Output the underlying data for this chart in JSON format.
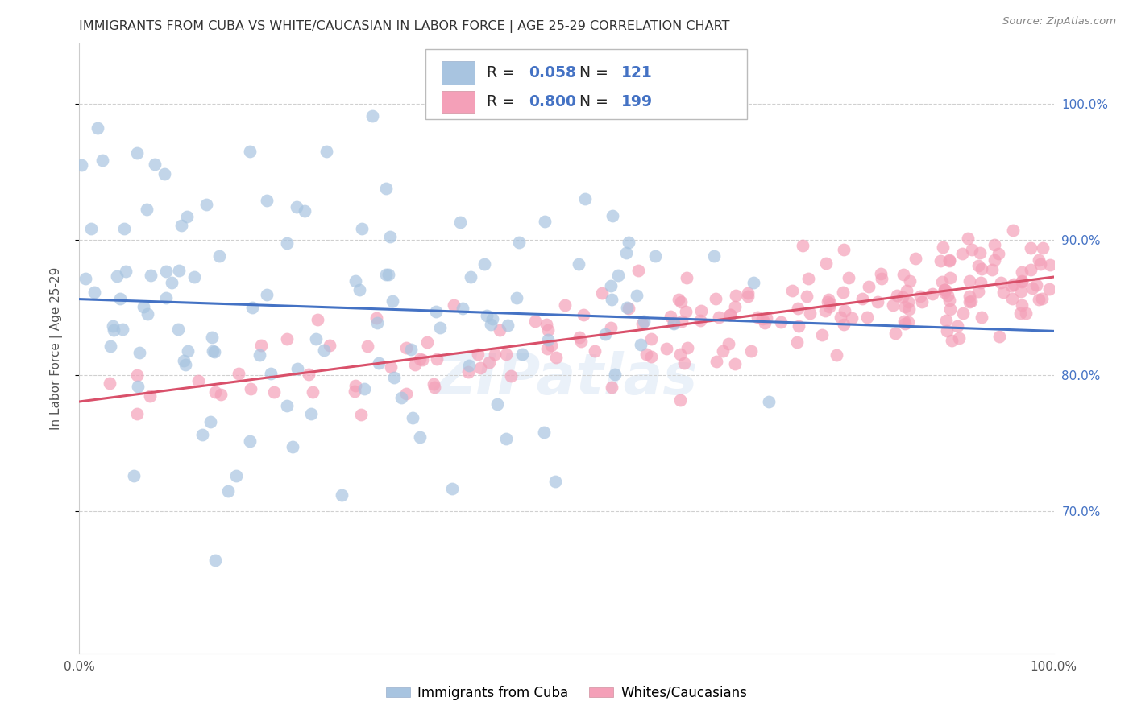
{
  "title": "IMMIGRANTS FROM CUBA VS WHITE/CAUCASIAN IN LABOR FORCE | AGE 25-29 CORRELATION CHART",
  "source": "Source: ZipAtlas.com",
  "ylabel": "In Labor Force | Age 25-29",
  "xmin": 0.0,
  "xmax": 1.0,
  "ymin": 0.595,
  "ymax": 1.045,
  "yticks": [
    0.7,
    0.8,
    0.9,
    1.0
  ],
  "ytick_labels": [
    "70.0%",
    "80.0%",
    "90.0%",
    "100.0%"
  ],
  "xticks": [
    0.0,
    0.25,
    0.5,
    0.75,
    1.0
  ],
  "xtick_labels": [
    "0.0%",
    "",
    "",
    "",
    "100.0%"
  ],
  "blue_R": "0.058",
  "blue_N": "121",
  "pink_R": "0.800",
  "pink_N": "199",
  "blue_color": "#a8c4e0",
  "pink_color": "#f4a0b8",
  "blue_line_color": "#4472c4",
  "pink_line_color": "#d9506a",
  "legend_color": "#4472c4",
  "watermark": "ZIPatlas",
  "background_color": "#ffffff",
  "grid_color": "#d0d0d0",
  "title_color": "#333333",
  "right_ytick_color": "#4472c4"
}
